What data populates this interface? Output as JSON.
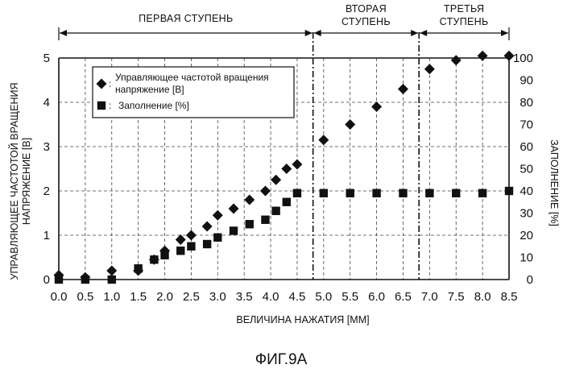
{
  "figure_label": "ФИГ.9А",
  "chart_data": {
    "type": "scatter",
    "xlabel": "ВЕЛИЧИНА НАЖАТИЯ [ММ]",
    "ylabel_left": [
      "УПРАВЛЯЮЩЕЕ ЧАСТОТОЙ ВРАЩЕНИЯ",
      "НАПРЯЖЕНИЕ [В]"
    ],
    "ylabel_right": "ЗАПОЛНЕНИЕ [%]",
    "xlim": [
      0,
      8.5
    ],
    "ylim_left": [
      0,
      5
    ],
    "ylim_right": [
      0,
      100
    ],
    "x_ticks": [
      "0.0",
      "0.5",
      "1.0",
      "1.5",
      "2.0",
      "2.5",
      "3.0",
      "3.5",
      "4.0",
      "4.5",
      "5.0",
      "5.5",
      "6.0",
      "6.5",
      "7.0",
      "7.5",
      "8.0",
      "8.5"
    ],
    "y_left_ticks": [
      "0",
      "1",
      "2",
      "3",
      "4",
      "5"
    ],
    "y_right_ticks": [
      "0",
      "10",
      "20",
      "30",
      "40",
      "50",
      "60",
      "70",
      "80",
      "90",
      "100"
    ],
    "grid": true,
    "stages": [
      {
        "lines": [
          "ПЕРВАЯ СТУПЕНЬ"
        ],
        "from": 0,
        "to": 4.8
      },
      {
        "lines": [
          "ВТОРАЯ",
          "СТУПЕНЬ"
        ],
        "from": 4.8,
        "to": 6.8
      },
      {
        "lines": [
          "ТРЕТЬЯ",
          "СТУПЕНЬ"
        ],
        "from": 6.8,
        "to": 8.5
      }
    ],
    "stage_boundaries": [
      4.8,
      6.8
    ],
    "series": [
      {
        "name_lines": [
          "Управляющее частотой вращения",
          "напряжение [В]"
        ],
        "marker": "diamond",
        "axis": "left",
        "points": [
          [
            0.0,
            0.1
          ],
          [
            0.5,
            0.05
          ],
          [
            1.0,
            0.2
          ],
          [
            1.5,
            0.2
          ],
          [
            1.8,
            0.45
          ],
          [
            2.0,
            0.65
          ],
          [
            2.3,
            0.9
          ],
          [
            2.5,
            1.0
          ],
          [
            2.8,
            1.2
          ],
          [
            3.0,
            1.45
          ],
          [
            3.3,
            1.6
          ],
          [
            3.6,
            1.8
          ],
          [
            3.9,
            2.0
          ],
          [
            4.1,
            2.25
          ],
          [
            4.3,
            2.5
          ],
          [
            4.5,
            2.6
          ],
          [
            5.0,
            3.15
          ],
          [
            5.5,
            3.5
          ],
          [
            6.0,
            3.9
          ],
          [
            6.5,
            4.3
          ],
          [
            7.0,
            4.75
          ],
          [
            7.5,
            4.95
          ],
          [
            8.0,
            5.05
          ],
          [
            8.5,
            5.05
          ]
        ]
      },
      {
        "name": "Заполнение [%]",
        "marker": "square",
        "axis": "right",
        "points": [
          [
            0.0,
            0
          ],
          [
            0.5,
            0
          ],
          [
            1.0,
            0
          ],
          [
            1.5,
            5
          ],
          [
            1.8,
            9
          ],
          [
            2.0,
            11
          ],
          [
            2.3,
            13
          ],
          [
            2.5,
            15
          ],
          [
            2.8,
            16
          ],
          [
            3.0,
            19
          ],
          [
            3.3,
            22
          ],
          [
            3.6,
            25
          ],
          [
            3.9,
            27
          ],
          [
            4.1,
            31
          ],
          [
            4.3,
            35
          ],
          [
            4.5,
            39
          ],
          [
            5.0,
            39
          ],
          [
            5.5,
            39
          ],
          [
            6.0,
            39
          ],
          [
            6.5,
            39
          ],
          [
            7.0,
            39
          ],
          [
            7.5,
            39
          ],
          [
            8.0,
            39
          ],
          [
            8.5,
            40
          ]
        ]
      }
    ]
  }
}
